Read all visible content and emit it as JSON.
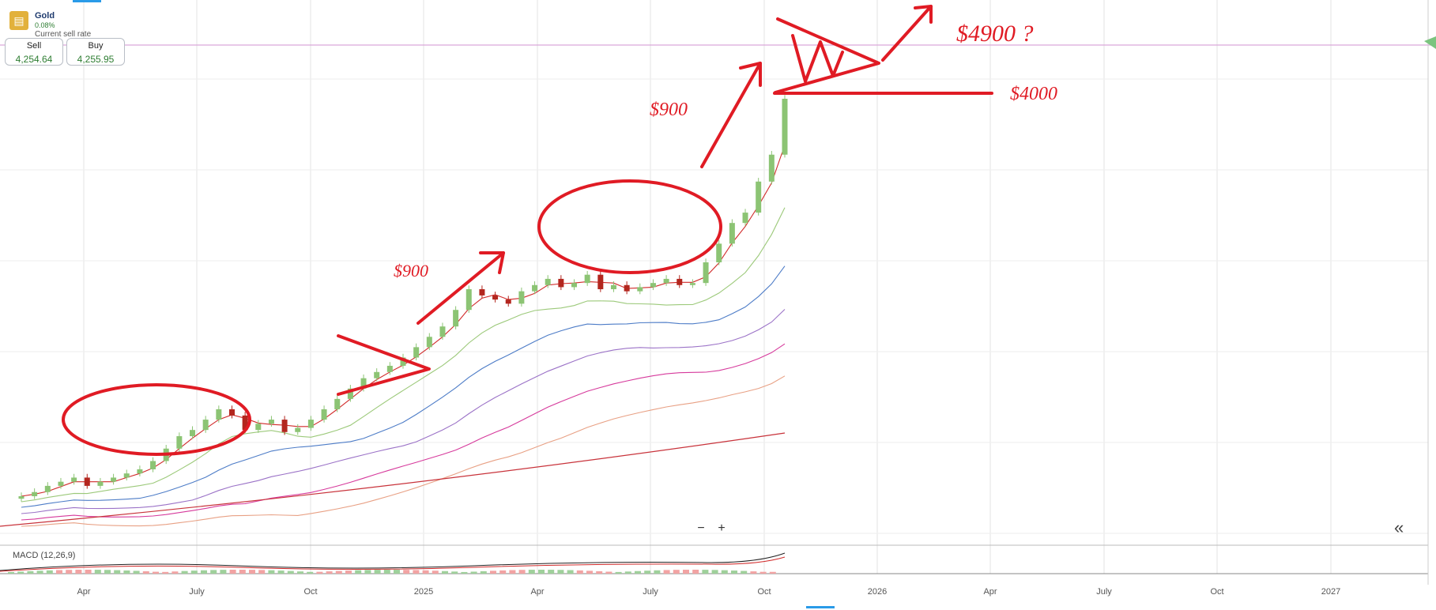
{
  "instrument": {
    "name": "Gold",
    "change": "0.08%",
    "rate_label": "Current sell rate",
    "icon": "gold-bars-icon"
  },
  "quotes": {
    "sell_label": "Sell",
    "sell_value": "4,254.64",
    "buy_label": "Buy",
    "buy_value": "4,255.95"
  },
  "controls": {
    "zoom_out": "−",
    "zoom_in": "+",
    "collapse": "«"
  },
  "indicator": {
    "macd_label": "MACD (12,26,9)"
  },
  "x_axis_labels": [
    "Apr",
    "July",
    "Oct",
    "2025",
    "Apr",
    "July",
    "Oct",
    "2026",
    "Apr",
    "July",
    "Oct",
    "2027"
  ],
  "annotations": {
    "move_1": "$900",
    "move_2": "$900",
    "support": "$4000",
    "target": "$4900 ?"
  },
  "colors": {
    "up_candle": "#8cc474",
    "down_candle": "#b3261e",
    "drawing": "#e01b24",
    "current_price_line": "#d9a7d9"
  },
  "chart_data": {
    "type": "candlestick",
    "description_series": [
      {
        "name": "price",
        "values": [
          2330,
          2350,
          2380,
          2400,
          2420,
          2380,
          2400,
          2420,
          2440,
          2460,
          2500,
          2560,
          2620,
          2650,
          2700,
          2750,
          2720,
          2650,
          2680,
          2700,
          2640,
          2660,
          2700,
          2750,
          2800,
          2850,
          2900,
          2930,
          2960,
          3000,
          3050,
          3100,
          3150,
          3230,
          3330,
          3300,
          3280,
          3260,
          3320,
          3350,
          3380,
          3340,
          3360,
          3400,
          3330,
          3350,
          3320,
          3340,
          3360,
          3380,
          3350,
          3360,
          3460,
          3550,
          3650,
          3700,
          3850,
          3980,
          4250
        ]
      }
    ]
  }
}
